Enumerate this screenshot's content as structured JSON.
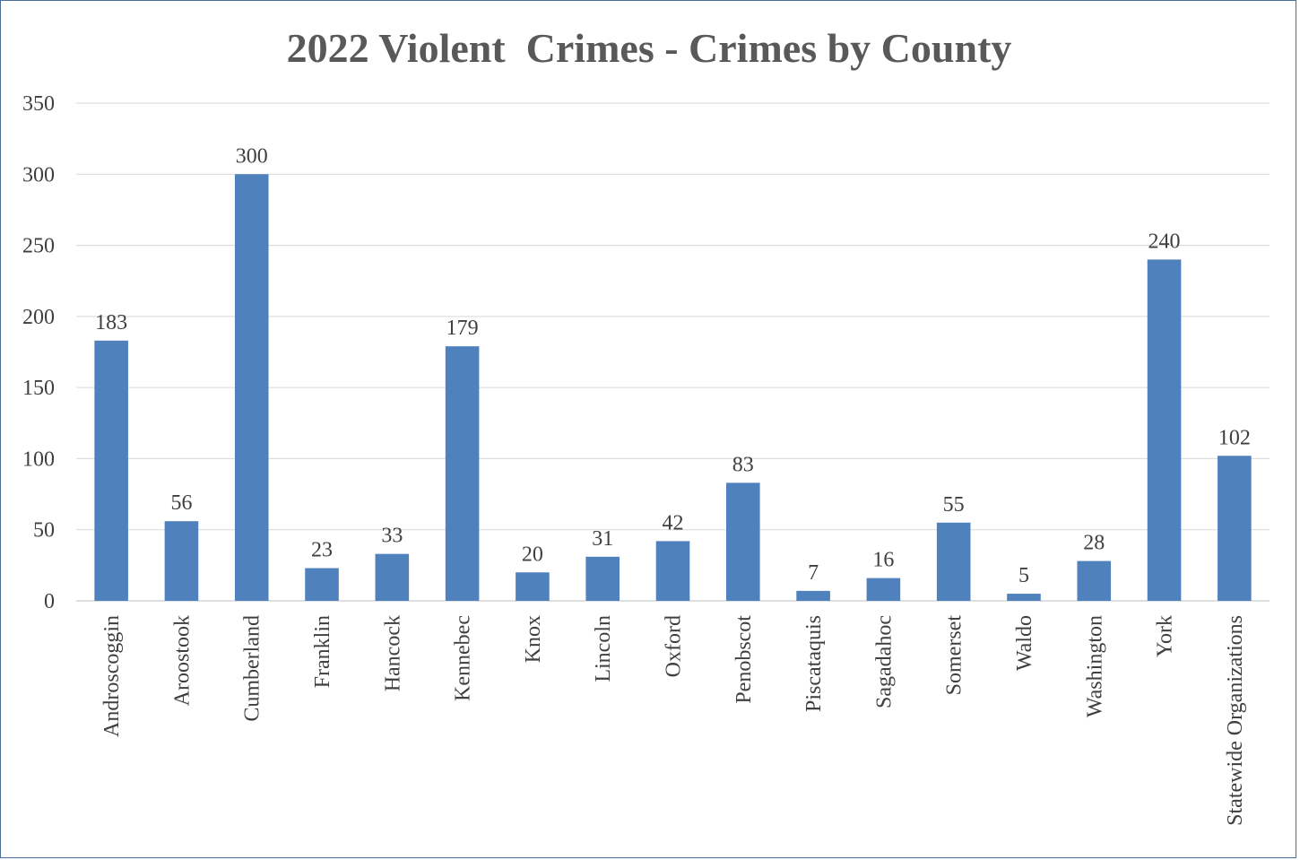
{
  "chart_data": {
    "type": "bar",
    "title": "2022 Violent  Crimes - Crimes by County",
    "xlabel": "",
    "ylabel": "",
    "categories": [
      "Androscoggin",
      "Aroostook",
      "Cumberland",
      "Franklin",
      "Hancock",
      "Kennebec",
      "Knox",
      "Lincoln",
      "Oxford",
      "Penobscot",
      "Piscataquis",
      "Sagadahoc",
      "Somerset",
      "Waldo",
      "Washington",
      "York",
      "Statewide Organizations"
    ],
    "values": [
      183,
      56,
      300,
      23,
      33,
      179,
      20,
      31,
      42,
      83,
      7,
      16,
      55,
      5,
      28,
      240,
      102
    ],
    "ylim": [
      0,
      350
    ],
    "yticks": [
      0,
      50,
      100,
      150,
      200,
      250,
      300,
      350
    ],
    "grid": true,
    "legend": "none",
    "bar_color": "#4f81bd",
    "grid_color": "#d9d9d9"
  }
}
